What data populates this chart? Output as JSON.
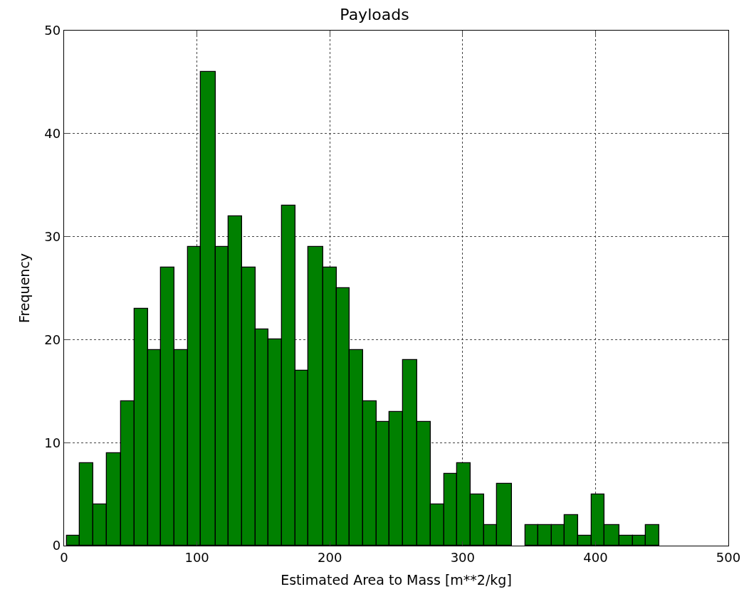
{
  "chart_data": {
    "type": "histogram",
    "title": "Payloads",
    "xlabel": "Estimated Area to Mass [m**2/kg]",
    "ylabel": "Frequency",
    "bins": [
      2,
      12,
      22,
      32,
      43,
      53,
      63,
      73,
      83,
      93,
      103,
      114,
      124,
      134,
      144,
      154,
      164,
      174,
      184,
      195,
      205,
      215,
      225,
      235,
      245,
      255,
      266,
      276,
      286,
      296,
      306,
      316,
      326,
      337,
      347,
      357,
      367,
      377,
      387,
      397,
      407,
      418,
      428,
      438,
      448
    ],
    "values": [
      1,
      8,
      4,
      9,
      14,
      23,
      19,
      27,
      19,
      29,
      46,
      29,
      32,
      27,
      21,
      20,
      33,
      17,
      29,
      27,
      25,
      19,
      14,
      12,
      13,
      18,
      12,
      4,
      7,
      8,
      5,
      2,
      6,
      0,
      2,
      2,
      2,
      3,
      1,
      5,
      2,
      1,
      1,
      2
    ],
    "color": "#008000",
    "xlim": [
      0,
      500
    ],
    "xticks": [
      0,
      100,
      200,
      300,
      400,
      500
    ],
    "ylim": [
      0,
      50
    ],
    "yticks": [
      0,
      10,
      20,
      30,
      40,
      50
    ],
    "grid": true
  }
}
